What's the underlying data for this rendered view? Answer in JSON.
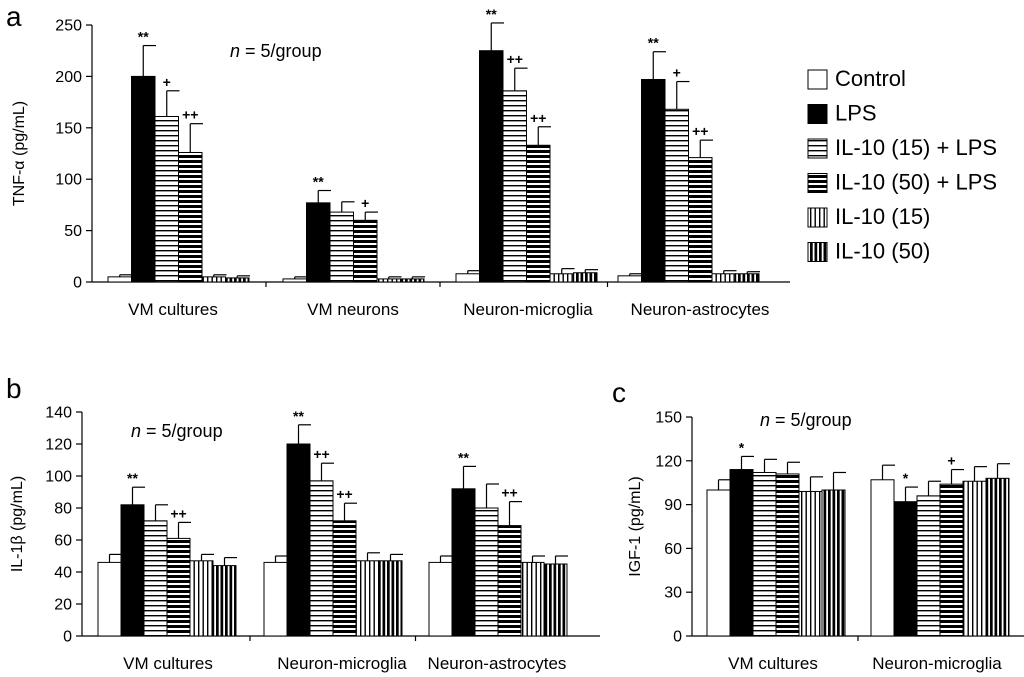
{
  "figure": {
    "legend": [
      {
        "key": "control",
        "label": "Control"
      },
      {
        "key": "lps",
        "label": "LPS"
      },
      {
        "key": "il10_15_lps",
        "label": "IL-10 (15) + LPS"
      },
      {
        "key": "il10_50_lps",
        "label": "IL-10 (50) + LPS"
      },
      {
        "key": "il10_15",
        "label": "IL-10 (15)"
      },
      {
        "key": "il10_50",
        "label": "IL-10 (50)"
      }
    ]
  },
  "chart_data": [
    {
      "panel": "a",
      "type": "bar",
      "title": "",
      "ylabel": "TNF-α (pg/mL)",
      "xlabel": "",
      "ylim": [
        0,
        250
      ],
      "yticks": [
        0,
        50,
        100,
        150,
        200,
        250
      ],
      "annotation": {
        "italic": "n",
        "rest": " = 5/group"
      },
      "categories": [
        "VM cultures",
        "VM neurons",
        "Neuron-microglia",
        "Neuron-astrocytes"
      ],
      "series": [
        {
          "name": "Control",
          "values": [
            5,
            3,
            8,
            6
          ],
          "errors": [
            2,
            2,
            3,
            2
          ],
          "marks": [
            "",
            "",
            "",
            ""
          ]
        },
        {
          "name": "LPS",
          "values": [
            200,
            77,
            225,
            197
          ],
          "errors": [
            30,
            12,
            27,
            27
          ],
          "marks": [
            "**",
            "**",
            "**",
            "**"
          ]
        },
        {
          "name": "IL-10 (15) + LPS",
          "values": [
            161,
            68,
            186,
            168
          ],
          "errors": [
            25,
            10,
            22,
            27
          ],
          "marks": [
            "+",
            "",
            "++",
            "+"
          ]
        },
        {
          "name": "IL-10 (50) + LPS",
          "values": [
            126,
            60,
            133,
            121
          ],
          "errors": [
            28,
            8,
            18,
            17
          ],
          "marks": [
            "++",
            "+",
            "++",
            "++"
          ]
        },
        {
          "name": "IL-10 (15)",
          "values": [
            5,
            3,
            8,
            8
          ],
          "errors": [
            2,
            2,
            5,
            3
          ],
          "marks": [
            "",
            "",
            "",
            ""
          ]
        },
        {
          "name": "IL-10 (50)",
          "values": [
            4,
            3,
            9,
            8
          ],
          "errors": [
            2,
            2,
            3,
            2
          ],
          "marks": [
            "",
            "",
            "",
            ""
          ]
        }
      ]
    },
    {
      "panel": "b",
      "type": "bar",
      "title": "",
      "ylabel": "IL-1β (pg/mL)",
      "xlabel": "",
      "ylim": [
        0,
        140
      ],
      "yticks": [
        0,
        20,
        40,
        60,
        80,
        100,
        120,
        140
      ],
      "annotation": {
        "italic": "n",
        "rest": " = 5/group"
      },
      "categories": [
        "VM cultures",
        "Neuron-microglia",
        "Neuron-astrocytes"
      ],
      "series": [
        {
          "name": "Control",
          "values": [
            46,
            46,
            46
          ],
          "errors": [
            5,
            4,
            4
          ],
          "marks": [
            "",
            "",
            ""
          ]
        },
        {
          "name": "LPS",
          "values": [
            82,
            120,
            92
          ],
          "errors": [
            11,
            12,
            14
          ],
          "marks": [
            "**",
            "**",
            "**"
          ]
        },
        {
          "name": "IL-10 (15) + LPS",
          "values": [
            72,
            97,
            80
          ],
          "errors": [
            10,
            11,
            15
          ],
          "marks": [
            "",
            "++",
            ""
          ]
        },
        {
          "name": "IL-10 (50) + LPS",
          "values": [
            61,
            72,
            69
          ],
          "errors": [
            10,
            11,
            15
          ],
          "marks": [
            "++",
            "++",
            "++"
          ]
        },
        {
          "name": "IL-10 (15)",
          "values": [
            47,
            47,
            46
          ],
          "errors": [
            4,
            5,
            4
          ],
          "marks": [
            "",
            "",
            ""
          ]
        },
        {
          "name": "IL-10 (50)",
          "values": [
            44,
            47,
            45
          ],
          "errors": [
            5,
            4,
            5
          ],
          "marks": [
            "",
            "",
            ""
          ]
        }
      ]
    },
    {
      "panel": "c",
      "type": "bar",
      "title": "",
      "ylabel": "IGF-1 (pg/mL)",
      "xlabel": "",
      "ylim": [
        0,
        150
      ],
      "yticks": [
        0,
        30,
        60,
        90,
        120,
        150
      ],
      "annotation": {
        "italic": "n",
        "rest": " = 5/group"
      },
      "categories": [
        "VM cultures",
        "Neuron-microglia"
      ],
      "series": [
        {
          "name": "Control",
          "values": [
            100,
            107
          ],
          "errors": [
            7,
            10
          ],
          "marks": [
            "",
            ""
          ]
        },
        {
          "name": "LPS",
          "values": [
            114,
            92
          ],
          "errors": [
            9,
            10
          ],
          "marks": [
            "*",
            "*"
          ]
        },
        {
          "name": "IL-10 (15) + LPS",
          "values": [
            112,
            96
          ],
          "errors": [
            9,
            10
          ],
          "marks": [
            "",
            ""
          ]
        },
        {
          "name": "IL-10 (50) + LPS",
          "values": [
            111,
            104
          ],
          "errors": [
            8,
            10
          ],
          "marks": [
            "",
            "+"
          ]
        },
        {
          "name": "IL-10 (15)",
          "values": [
            99,
            106
          ],
          "errors": [
            10,
            10
          ],
          "marks": [
            "",
            ""
          ]
        },
        {
          "name": "IL-10 (50)",
          "values": [
            100,
            108
          ],
          "errors": [
            12,
            10
          ],
          "marks": [
            "",
            ""
          ]
        }
      ]
    }
  ]
}
